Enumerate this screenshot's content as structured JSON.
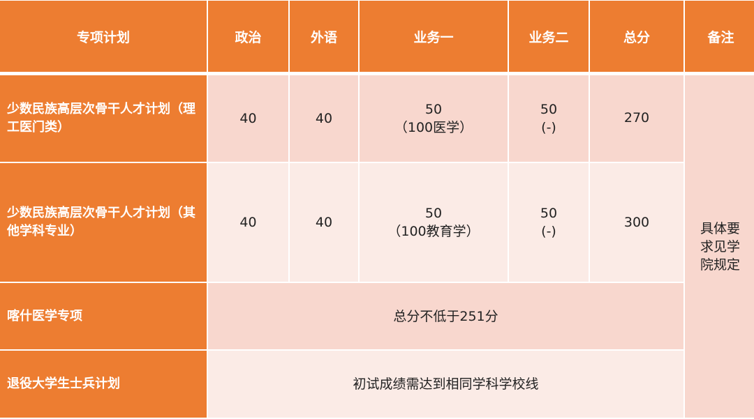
{
  "colors": {
    "header": "#ED7D31",
    "row_dark": "#F8D7CE",
    "row_light": "#FBEBE6"
  },
  "headers": [
    "专项计划",
    "政治",
    "外语",
    "业务一",
    "业务二",
    "总分",
    "备注"
  ],
  "rows": [
    {
      "plan": "少数民族高层次骨干人才计划（理工医门类）",
      "politics": "40",
      "language": "40",
      "subject1": "50",
      "subject1_note": "（100医学）",
      "subject2": "50",
      "subject2_note": "(-)",
      "total": "270"
    },
    {
      "plan": "少数民族高层次骨干人才计划（其他学科专业）",
      "politics": "40",
      "language": "40",
      "subject1": "50",
      "subject1_note": "（100教育学）",
      "subject2": "50",
      "subject2_note": "(-)",
      "total": "300"
    },
    {
      "plan": "喀什医学专项",
      "merged": "总分不低于251分"
    },
    {
      "plan": "退役大学生士兵计划",
      "merged": "初试成绩需达到相同学科学校线"
    }
  ],
  "note": "具体要求见学院规定"
}
